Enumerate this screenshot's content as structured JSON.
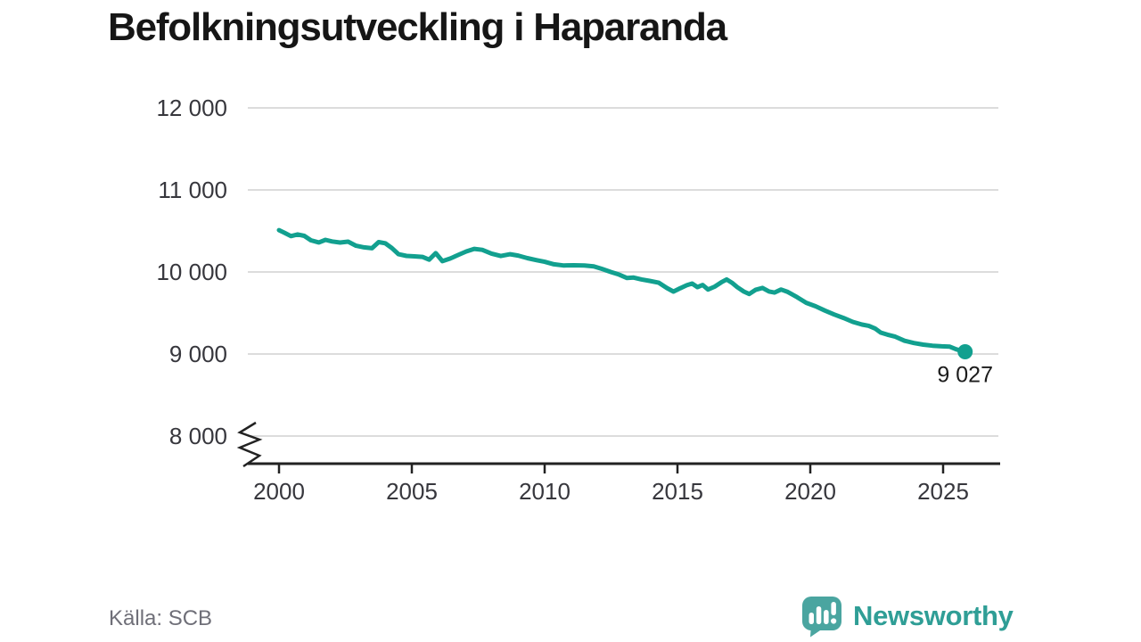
{
  "title": "Befolkningsutveckling i Haparanda",
  "footer": {
    "source_label": "Källa: SCB",
    "brand": "Newsworthy"
  },
  "colors": {
    "line": "#12a08f",
    "logo_icon": "#4aa5a0",
    "logo_text": "#2f9e96",
    "grid": "#dcdcdc",
    "axis": "#222222",
    "tick_text": "#37373d",
    "source_text": "#6f6f78"
  },
  "chart_data": {
    "type": "line",
    "title": "Befolkningsutveckling i Haparanda",
    "xlabel": "",
    "ylabel": "",
    "source": "SCB",
    "grid": "horizontal",
    "legend": "none",
    "y_axis_break": true,
    "ylim": [
      8000,
      12000
    ],
    "xlim": [
      1999,
      2027
    ],
    "yticks": [
      12000,
      11000,
      10000,
      9000,
      8000
    ],
    "ytick_labels": [
      "12 000",
      "11 000",
      "10 000",
      "9 000",
      "8 000"
    ],
    "xticks": [
      2000,
      2005,
      2010,
      2015,
      2020,
      2025
    ],
    "end_label": "9 027",
    "end_value": 9027,
    "series": [
      {
        "name": "Befolkning",
        "points": [
          [
            2000.0,
            10510
          ],
          [
            2000.2,
            10478
          ],
          [
            2000.45,
            10437
          ],
          [
            2000.7,
            10458
          ],
          [
            2000.95,
            10440
          ],
          [
            2001.2,
            10386
          ],
          [
            2001.5,
            10360
          ],
          [
            2001.75,
            10391
          ],
          [
            2002.0,
            10372
          ],
          [
            2002.3,
            10359
          ],
          [
            2002.6,
            10370
          ],
          [
            2002.9,
            10320
          ],
          [
            2003.2,
            10300
          ],
          [
            2003.5,
            10289
          ],
          [
            2003.75,
            10364
          ],
          [
            2004.0,
            10350
          ],
          [
            2004.25,
            10291
          ],
          [
            2004.5,
            10216
          ],
          [
            2004.8,
            10196
          ],
          [
            2005.1,
            10190
          ],
          [
            2005.4,
            10184
          ],
          [
            2005.65,
            10150
          ],
          [
            2005.9,
            10229
          ],
          [
            2006.15,
            10131
          ],
          [
            2006.45,
            10164
          ],
          [
            2006.75,
            10208
          ],
          [
            2007.05,
            10250
          ],
          [
            2007.35,
            10281
          ],
          [
            2007.65,
            10270
          ],
          [
            2008.0,
            10224
          ],
          [
            2008.35,
            10195
          ],
          [
            2008.7,
            10216
          ],
          [
            2009.0,
            10200
          ],
          [
            2009.35,
            10168
          ],
          [
            2009.7,
            10144
          ],
          [
            2010.0,
            10124
          ],
          [
            2010.35,
            10094
          ],
          [
            2010.7,
            10079
          ],
          [
            2011.1,
            10081
          ],
          [
            2011.5,
            10079
          ],
          [
            2011.85,
            10069
          ],
          [
            2012.15,
            10038
          ],
          [
            2012.5,
            9999
          ],
          [
            2012.8,
            9968
          ],
          [
            2013.1,
            9926
          ],
          [
            2013.35,
            9931
          ],
          [
            2013.65,
            9909
          ],
          [
            2013.95,
            9891
          ],
          [
            2014.3,
            9869
          ],
          [
            2014.6,
            9804
          ],
          [
            2014.85,
            9761
          ],
          [
            2015.1,
            9801
          ],
          [
            2015.35,
            9838
          ],
          [
            2015.55,
            9859
          ],
          [
            2015.75,
            9815
          ],
          [
            2015.95,
            9841
          ],
          [
            2016.15,
            9786
          ],
          [
            2016.4,
            9821
          ],
          [
            2016.65,
            9874
          ],
          [
            2016.85,
            9909
          ],
          [
            2017.05,
            9868
          ],
          [
            2017.25,
            9814
          ],
          [
            2017.5,
            9761
          ],
          [
            2017.7,
            9731
          ],
          [
            2017.95,
            9784
          ],
          [
            2018.2,
            9805
          ],
          [
            2018.45,
            9762
          ],
          [
            2018.65,
            9749
          ],
          [
            2018.9,
            9786
          ],
          [
            2019.15,
            9756
          ],
          [
            2019.5,
            9694
          ],
          [
            2019.85,
            9624
          ],
          [
            2020.2,
            9581
          ],
          [
            2020.55,
            9529
          ],
          [
            2020.9,
            9481
          ],
          [
            2021.25,
            9439
          ],
          [
            2021.6,
            9391
          ],
          [
            2021.95,
            9359
          ],
          [
            2022.2,
            9344
          ],
          [
            2022.45,
            9309
          ],
          [
            2022.65,
            9261
          ],
          [
            2022.9,
            9236
          ],
          [
            2023.2,
            9211
          ],
          [
            2023.55,
            9161
          ],
          [
            2023.9,
            9134
          ],
          [
            2024.25,
            9114
          ],
          [
            2024.6,
            9101
          ],
          [
            2024.95,
            9094
          ],
          [
            2025.25,
            9089
          ],
          [
            2025.5,
            9056
          ],
          [
            2025.83,
            9027
          ]
        ]
      }
    ]
  }
}
